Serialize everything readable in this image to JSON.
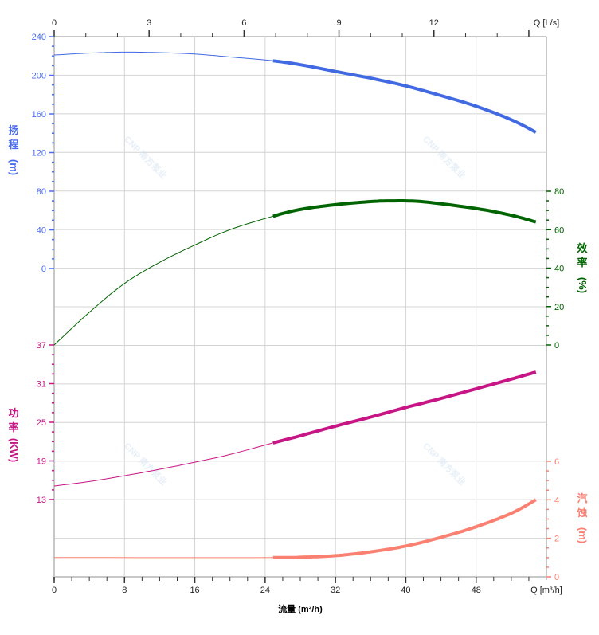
{
  "chart_data": {
    "type": "line",
    "x_axis": {
      "label": "流量 (m³/h)",
      "end_label": "Q [m³/h]",
      "range": [
        0,
        56
      ],
      "ticks": [
        0,
        8,
        16,
        24,
        32,
        40,
        48
      ]
    },
    "top_axis": {
      "end_label": "Q [L/s]",
      "range": [
        0,
        15.556
      ],
      "ticks": [
        0,
        3,
        6,
        9,
        12
      ]
    },
    "operating_range": [
      24.9,
      54.8
    ],
    "series": [
      {
        "name": "head",
        "axis_label": [
          "扬",
          "程",
          "(m)"
        ],
        "color": "#4169e1",
        "label_color": "#4a6cf0",
        "range": [
          0,
          240
        ],
        "ticks": [
          0,
          40,
          80,
          120,
          160,
          200,
          240
        ],
        "points": [
          [
            0,
            221
          ],
          [
            4,
            223
          ],
          [
            8,
            224
          ],
          [
            12,
            223.5
          ],
          [
            16,
            222
          ],
          [
            20,
            219
          ],
          [
            24.9,
            215
          ],
          [
            28,
            211
          ],
          [
            32,
            204
          ],
          [
            36,
            197
          ],
          [
            40,
            189
          ],
          [
            44,
            179
          ],
          [
            48,
            168
          ],
          [
            52,
            154
          ],
          [
            54.8,
            141
          ]
        ]
      },
      {
        "name": "efficiency",
        "axis_label": [
          "效",
          "率",
          "(%)"
        ],
        "color": "#006400",
        "label_color": "#006400",
        "range": [
          0,
          80
        ],
        "ticks": [
          0,
          20,
          40,
          60,
          80
        ],
        "points": [
          [
            0,
            0
          ],
          [
            4,
            17
          ],
          [
            8,
            32
          ],
          [
            12,
            43
          ],
          [
            16,
            52
          ],
          [
            20,
            60
          ],
          [
            24.9,
            67
          ],
          [
            28,
            70.5
          ],
          [
            32,
            73
          ],
          [
            36,
            74.6
          ],
          [
            38.5,
            75
          ],
          [
            42,
            74.5
          ],
          [
            48,
            71
          ],
          [
            52,
            67.5
          ],
          [
            54.8,
            64
          ]
        ]
      },
      {
        "name": "power",
        "axis_label": [
          "功",
          "率",
          "(KW)"
        ],
        "color": "#c71585",
        "label_color": "#c71585",
        "range": [
          13,
          37
        ],
        "ticks": [
          13,
          19,
          25,
          31,
          37
        ],
        "points": [
          [
            0,
            15.1
          ],
          [
            4,
            15.8
          ],
          [
            8,
            16.7
          ],
          [
            12,
            17.7
          ],
          [
            16,
            18.8
          ],
          [
            20,
            20
          ],
          [
            24.9,
            21.8
          ],
          [
            28,
            22.9
          ],
          [
            32,
            24.4
          ],
          [
            36,
            25.8
          ],
          [
            40,
            27.3
          ],
          [
            44,
            28.7
          ],
          [
            48,
            30.2
          ],
          [
            52,
            31.7
          ],
          [
            54.8,
            32.8
          ]
        ]
      },
      {
        "name": "npsh",
        "axis_label": [
          "汽",
          "蚀",
          "(m)"
        ],
        "color": "#fa8072",
        "label_color": "#fa8072",
        "range": [
          0,
          6
        ],
        "ticks": [
          0,
          2,
          4,
          6
        ],
        "points": [
          [
            0,
            1
          ],
          [
            24.9,
            1
          ],
          [
            28,
            1.02
          ],
          [
            32,
            1.1
          ],
          [
            36,
            1.3
          ],
          [
            40,
            1.6
          ],
          [
            44,
            2.05
          ],
          [
            48,
            2.6
          ],
          [
            52,
            3.3
          ],
          [
            54.8,
            4.0
          ]
        ]
      }
    ],
    "watermark": "CNP 南方泵业"
  }
}
